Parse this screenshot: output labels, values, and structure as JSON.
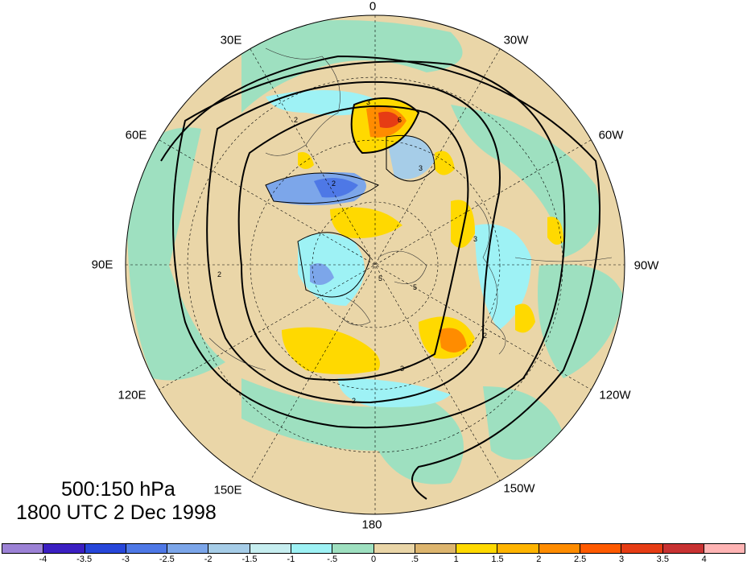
{
  "caption": {
    "levels": "500:150 hPa",
    "time": "1800 UTC 2 Dec 1998"
  },
  "longitude_labels": [
    "0",
    "30W",
    "60W",
    "90W",
    "120W",
    "150W",
    "180",
    "150E",
    "120E",
    "90E",
    "60E",
    "30E"
  ],
  "colorbar": {
    "colors": [
      "#9c82d6",
      "#3b1fc2",
      "#2746d9",
      "#4e78e6",
      "#7ca6ea",
      "#a6cde8",
      "#c6eef0",
      "#9ef2f5",
      "#9ee0c0",
      "#ead6a8",
      "#ddb56e",
      "#ffd900",
      "#ffb400",
      "#ff8c00",
      "#ff5a00",
      "#e63c14",
      "#c83232",
      "#ffb4b4"
    ],
    "labels": [
      "-4",
      "-3.5",
      "-3",
      "-2.5",
      "-2",
      "-1.5",
      "-1",
      "-.5",
      "0",
      ".5",
      "1",
      "1.5",
      "2",
      "2.5",
      "3",
      "3.5",
      "4"
    ]
  },
  "contour_labels": [
    "2",
    "3",
    "2",
    "3",
    "2",
    "5",
    "3",
    "2",
    "6",
    "5",
    "3",
    "2"
  ]
}
